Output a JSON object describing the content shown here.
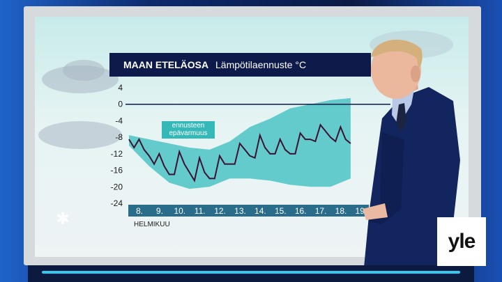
{
  "header": {
    "title_bold": "MAAN ETELÄOSA",
    "title_sub": "Lämpötilaennuste °C"
  },
  "legend": {
    "line1": "ennusteen",
    "line2": "epävarmuus"
  },
  "chart_data": {
    "type": "line",
    "title": "MAAN ETELÄOSA Lämpötilaennuste °C",
    "xlabel": "HELMIKUU",
    "ylabel": "",
    "ylim": [
      -24,
      4
    ],
    "yticks": [
      4,
      0,
      -4,
      -8,
      -12,
      -16,
      -20,
      -24
    ],
    "x_days": [
      "8.",
      "9.",
      "10.",
      "11.",
      "12.",
      "13.",
      "14.",
      "15.",
      "16.",
      "17.",
      "18.",
      "19."
    ],
    "series": [
      {
        "x": [
          8.0,
          8.25,
          8.5,
          8.75,
          9.0,
          9.25,
          9.5,
          9.75,
          10.0,
          10.25,
          10.5,
          10.75,
          11.0,
          11.25,
          11.5,
          11.75,
          12.0,
          12.25,
          12.5,
          12.75,
          13.0,
          13.25,
          13.5,
          13.75,
          14.0,
          14.25,
          14.5,
          14.75,
          15.0,
          15.25,
          15.5,
          15.75,
          16.0,
          16.25,
          16.5,
          16.75,
          17.0,
          17.25,
          17.5,
          17.75,
          18.0,
          18.25,
          18.5,
          18.75,
          19.0
        ],
        "values": [
          -8.5,
          -10.5,
          -8.5,
          -11,
          -12.5,
          -14.5,
          -12,
          -15,
          -17,
          -17,
          -11.5,
          -14.5,
          -16.5,
          -18.5,
          -13,
          -16.5,
          -18,
          -18,
          -12.5,
          -14.5,
          -14.5,
          -14.5,
          -9.5,
          -11,
          -12.5,
          -13,
          -7.5,
          -10.5,
          -12,
          -12,
          -8.5,
          -11,
          -12,
          -12,
          -7,
          -8.5,
          -8.5,
          -9,
          -5,
          -6.5,
          -8,
          -9,
          -5.5,
          -8.5,
          -9.5
        ]
      }
    ],
    "uncertainty_band": {
      "x": [
        8.0,
        9.0,
        10.0,
        11.0,
        12.0,
        13.0,
        14.0,
        15.0,
        16.0,
        17.0,
        18.0,
        19.0
      ],
      "upper": [
        -7.5,
        -8.5,
        -9.5,
        -10.5,
        -11,
        -9,
        -5.5,
        -3.5,
        -1,
        0,
        1,
        1.5
      ],
      "lower": [
        -10,
        -15,
        -19,
        -20.5,
        -20,
        -18,
        -18,
        -18.5,
        -19.5,
        -20,
        -20,
        -18
      ]
    },
    "colors": {
      "line": "#3b1231",
      "band": "#4cc3c4",
      "zero_line": "#0d1a4a",
      "tick_text": "#1a1a1a",
      "day_bar": "#2a6d8a"
    }
  }
}
